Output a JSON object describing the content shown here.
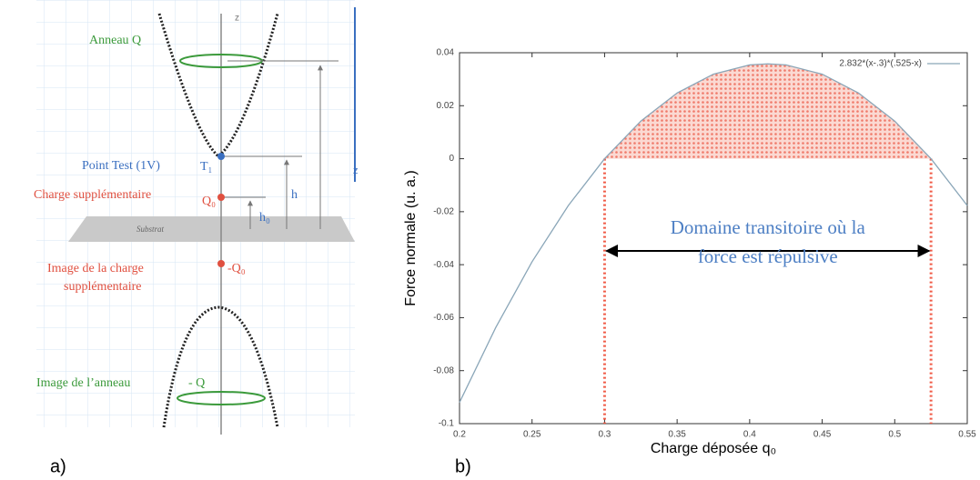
{
  "diagram": {
    "ring": "Anneau Q",
    "test_point": "Point Test (1V)",
    "test_point_symbol": "T₁",
    "extra_charge": "Charge supplémentaire",
    "extra_charge_symbol": "Q₀",
    "height": "h",
    "height_0": "h₀",
    "substrate": "Substrat",
    "image_charge": [
      "Image de la charge",
      "supplémentaire"
    ],
    "image_charge_symbol": "-Q₀",
    "image_ring": "Image de l’anneau",
    "image_ring_symbol": "- Q",
    "axis": "z",
    "axis_right": "z",
    "panel_label": "a)"
  },
  "chart_data": {
    "type": "line",
    "panel_label": "b)",
    "x_label": "Charge déposée q₀",
    "y_label": "Force normale (u. a.)",
    "annotation": [
      "Domaine transitoire où la",
      "force est répulsive"
    ],
    "x": [
      0.2,
      0.225,
      0.25,
      0.275,
      0.3,
      0.325,
      0.35,
      0.375,
      0.4,
      0.4125,
      0.425,
      0.45,
      0.475,
      0.5,
      0.525,
      0.55
    ],
    "series": [
      {
        "name": "2.832*(x-.3)*(.525-x)",
        "color": "#8aa6b8",
        "values": [
          -0.092,
          -0.0637,
          -0.0389,
          -0.0177,
          0,
          0.0142,
          0.0248,
          0.0319,
          0.0354,
          0.0358,
          0.0354,
          0.0319,
          0.0248,
          0.0142,
          0,
          -0.0177
        ]
      }
    ],
    "region": [
      0.3,
      0.525
    ],
    "region_color": "#f05a46",
    "xlim": [
      0.2,
      0.55
    ],
    "xticks": [
      0.2,
      0.25,
      0.3,
      0.35,
      0.4,
      0.45,
      0.5,
      0.55
    ],
    "ylim": [
      -0.1,
      0.04
    ],
    "yticks": [
      -0.1,
      -0.08,
      -0.06,
      -0.04,
      -0.02,
      0,
      0.02,
      0.04
    ],
    "legend": "top-right"
  }
}
